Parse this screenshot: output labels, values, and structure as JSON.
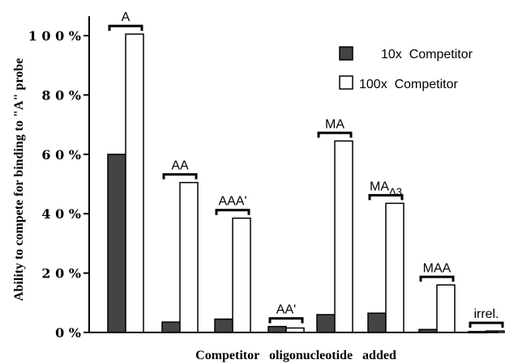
{
  "chart_data": {
    "type": "bar",
    "title": "",
    "xlabel": "Competitor   oligonucleotide   added",
    "ylabel": "Ability to compete for binding to \"A\" probe",
    "ylim": [
      0,
      100
    ],
    "yticks": [
      {
        "value": 0,
        "label": "0 %"
      },
      {
        "value": 20,
        "label": "2 0 %"
      },
      {
        "value": 40,
        "label": "4 0 %"
      },
      {
        "value": 60,
        "label": "6 0 %"
      },
      {
        "value": 80,
        "label": "8 0 %"
      },
      {
        "value": 100,
        "label": "1 0 0 %"
      }
    ],
    "categories": [
      {
        "label": "A",
        "sub": ""
      },
      {
        "label": "AA",
        "sub": ""
      },
      {
        "label": "AAA'",
        "sub": ""
      },
      {
        "label": "AA'",
        "sub": ""
      },
      {
        "label": "MA",
        "sub": ""
      },
      {
        "label": "MA",
        "sub": "Δ3"
      },
      {
        "label": "MAA",
        "sub": ""
      },
      {
        "label": "irrel.",
        "sub": ""
      }
    ],
    "series": [
      {
        "name": "10x  Competitor",
        "color": "#444444",
        "values": [
          60,
          3.5,
          4.5,
          2,
          6,
          6.5,
          1,
          0.3
        ]
      },
      {
        "name": "100x  Competitor",
        "color": "#ffffff",
        "values": [
          100.5,
          50.5,
          38.5,
          1.5,
          64.5,
          43.5,
          16,
          0.5
        ]
      }
    ],
    "grid": false,
    "legend": "top-right"
  }
}
